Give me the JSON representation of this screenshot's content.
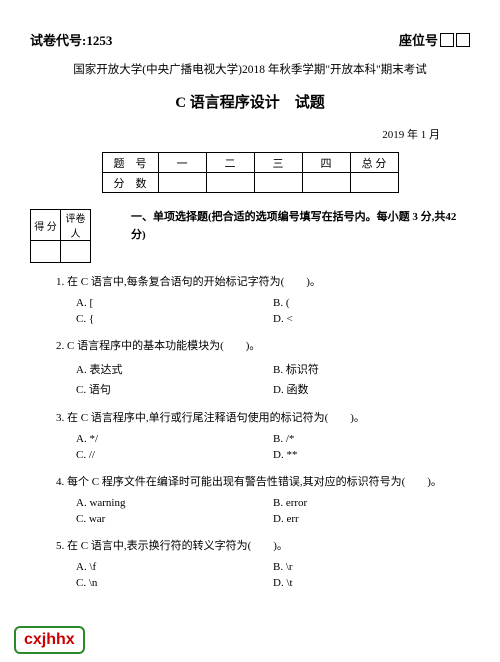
{
  "header": {
    "paper_code_label": "试卷代号:1253",
    "seat_label": "座位号"
  },
  "titles": {
    "line1": "国家开放大学(中央广播电视大学)2018 年秋季学期\"开放本科\"期末考试",
    "line2": "C 语言程序设计　试题",
    "date": "2019 年 1 月"
  },
  "score_table": {
    "row1": [
      "题　号",
      "一",
      "二",
      "三",
      "四",
      "总 分"
    ],
    "row2_label": "分　数"
  },
  "grader": {
    "c1": "得 分",
    "c2": "评卷人"
  },
  "section_intro": "一、单项选择题(把合适的选项编号填写在括号内。每小题 3 分,共42 分)",
  "questions": [
    {
      "num": "1.",
      "text": "在 C 语言中,每条复合语句的开始标记字符为(　　)。",
      "opts": [
        "A. [",
        "B. (",
        "C. {",
        "D. <"
      ]
    },
    {
      "num": "2.",
      "text": "C 语言程序中的基本功能模块为(　　)。",
      "opts": [
        "A. 表达式",
        "B. 标识符",
        "C. 语句",
        "D. 函数"
      ]
    },
    {
      "num": "3.",
      "text": "在 C 语言程序中,单行或行尾注释语句使用的标记符为(　　)。",
      "opts": [
        "A. */",
        "B. /*",
        "C. //",
        "D. **"
      ]
    },
    {
      "num": "4.",
      "text": "每个 C 程序文件在编译时可能出现有警告性错误,其对应的标识符号为(　　)。",
      "opts": [
        "A. warning",
        "B. error",
        "C. war",
        "D. err"
      ]
    },
    {
      "num": "5.",
      "text": "在 C 语言中,表示换行符的转义字符为(　　)。",
      "opts": [
        "A. \\f",
        "B. \\r",
        "C. \\n",
        "D. \\t"
      ]
    }
  ],
  "watermark": "cxjhhx"
}
